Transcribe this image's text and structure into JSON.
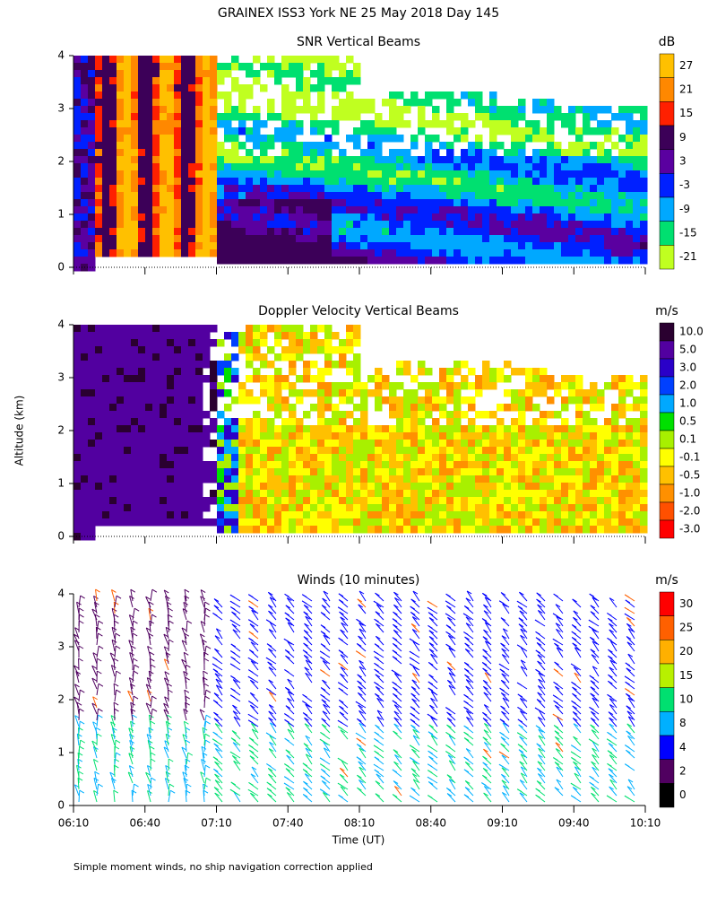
{
  "chart_data": {
    "title": "GRAINEX ISS3 York NE  25 May 2018 Day 145",
    "y_label": "Altitude (km)",
    "x_label": "Time (UT)",
    "footnote": "Simple moment winds, no ship navigation correction applied",
    "xticks": [
      "06:10",
      "06:40",
      "07:10",
      "07:40",
      "08:10",
      "08:40",
      "09:10",
      "09:40",
      "10:10"
    ],
    "panels": [
      {
        "type": "contour",
        "title": "SNR Vertical Beams",
        "unit": "dB",
        "ylim": [
          0,
          4
        ],
        "yticks": [
          0,
          1,
          2,
          3,
          4
        ],
        "levels": [
          27,
          21,
          15,
          9,
          3,
          -3,
          -9,
          -15,
          -21
        ],
        "colors": [
          "#ffc000",
          "#ff8800",
          "#ff2000",
          "#3c0058",
          "#5a00a0",
          "#0020ff",
          "#00a8ff",
          "#00e070",
          "#c0ff20"
        ]
      },
      {
        "type": "contour",
        "title": "Doppler Velocity Vertical Beams",
        "unit": "m/s",
        "ylim": [
          0,
          4
        ],
        "yticks": [
          0,
          1,
          2,
          3,
          4
        ],
        "levels": [
          "10.0",
          "5.0",
          "3.0",
          "2.0",
          "1.0",
          "0.5",
          "0.1",
          "-0.1",
          "-0.5",
          "-1.0",
          "-2.0",
          "-3.0"
        ],
        "colors": [
          "#2a0030",
          "#5200a0",
          "#2a00c8",
          "#0040ff",
          "#00a8ff",
          "#00e000",
          "#a8f000",
          "#ffff00",
          "#ffc000",
          "#ff9000",
          "#ff5000",
          "#ff0000"
        ]
      },
      {
        "type": "barbs",
        "title": "Winds (10 minutes)",
        "unit": "m/s",
        "ylim": [
          0,
          4
        ],
        "yticks": [
          0,
          1,
          2,
          3,
          4
        ],
        "levels": [
          30,
          25,
          20,
          15,
          10,
          8,
          4,
          2,
          0
        ],
        "colors": [
          "#ff0000",
          "#ff6000",
          "#ffb000",
          "#b8f000",
          "#00e070",
          "#00b0ff",
          "#0000ff",
          "#500060",
          "#000000"
        ]
      }
    ]
  }
}
